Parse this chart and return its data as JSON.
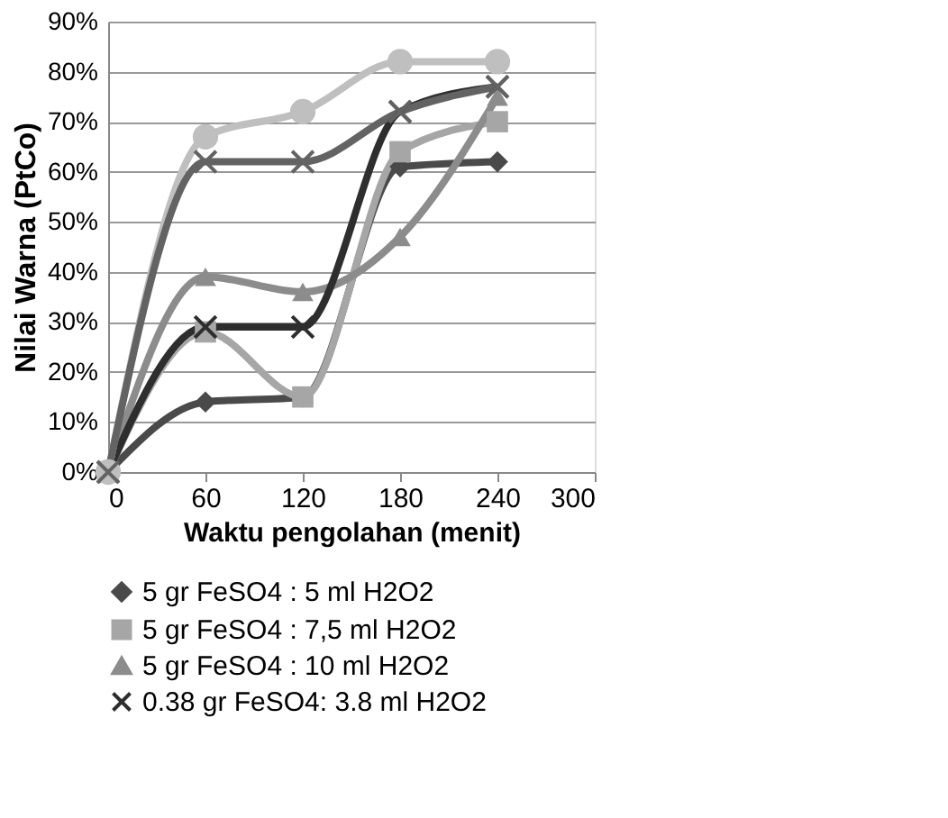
{
  "chart_data": {
    "type": "line",
    "xlabel": "Waktu pengolahan (menit)",
    "ylabel": "Nilai Warna (PtCo)",
    "x": [
      0,
      60,
      120,
      180,
      240
    ],
    "xlim": [
      0,
      300
    ],
    "xticks": [
      0,
      60,
      120,
      180,
      240,
      300
    ],
    "ylim": [
      0,
      90
    ],
    "yticks": [
      {
        "value": 0,
        "label": "0%"
      },
      {
        "value": 10,
        "label": "10%"
      },
      {
        "value": 20,
        "label": "20%"
      },
      {
        "value": 30,
        "label": "30%"
      },
      {
        "value": 40,
        "label": "40%"
      },
      {
        "value": 50,
        "label": "50%"
      },
      {
        "value": 60,
        "label": "60%"
      },
      {
        "value": 70,
        "label": "70%"
      },
      {
        "value": 80,
        "label": "80%"
      },
      {
        "value": 90,
        "label": "90%"
      }
    ],
    "grid": "y",
    "legend": "bottom",
    "series": [
      {
        "name": "5 gr FeSO4 : 5 ml  H2O2",
        "color": "#4a4a4a",
        "marker": "diamond",
        "values": [
          0,
          14,
          15,
          61,
          62
        ]
      },
      {
        "name": "5 gr FeSO4 : 7,5 ml H2O2",
        "color": "#a6a6a6",
        "marker": "square",
        "values": [
          0,
          28,
          15,
          64,
          70
        ]
      },
      {
        "name": "5 gr FeSO4 : 10 ml H2O2",
        "color": "#8c8c8c",
        "marker": "triangle",
        "values": [
          0,
          39,
          36,
          47,
          75
        ]
      },
      {
        "name": "0.38 gr FeSO4: 3.8 ml H2O2",
        "color": "#2e2e2e",
        "marker": "cross",
        "values": [
          0,
          29,
          29,
          72,
          77
        ]
      },
      {
        "color": "#bfbfbf",
        "marker": "circle",
        "values": [
          0,
          67,
          72,
          82,
          82
        ]
      },
      {
        "color": "#636363",
        "marker": "cross",
        "values": [
          0,
          62,
          62,
          72,
          77
        ]
      }
    ]
  }
}
